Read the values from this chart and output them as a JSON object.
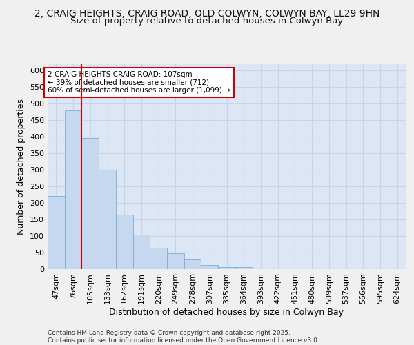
{
  "title_line1": "2, CRAIG HEIGHTS, CRAIG ROAD, OLD COLWYN, COLWYN BAY, LL29 9HN",
  "title_line2": "Size of property relative to detached houses in Colwyn Bay",
  "xlabel": "Distribution of detached houses by size in Colwyn Bay",
  "ylabel": "Number of detached properties",
  "categories": [
    "47sqm",
    "76sqm",
    "105sqm",
    "133sqm",
    "162sqm",
    "191sqm",
    "220sqm",
    "249sqm",
    "278sqm",
    "307sqm",
    "335sqm",
    "364sqm",
    "393sqm",
    "422sqm",
    "451sqm",
    "480sqm",
    "509sqm",
    "537sqm",
    "566sqm",
    "595sqm",
    "624sqm"
  ],
  "values": [
    220,
    480,
    395,
    300,
    165,
    105,
    65,
    47,
    30,
    12,
    7,
    7,
    0,
    0,
    0,
    0,
    0,
    0,
    0,
    0,
    0
  ],
  "bar_color": "#c5d8f0",
  "bar_edge_color": "#7bafd4",
  "grid_color": "#c8d4e8",
  "background_color": "#dce6f5",
  "annotation_text": "2 CRAIG HEIGHTS CRAIG ROAD: 107sqm\n← 39% of detached houses are smaller (712)\n60% of semi-detached houses are larger (1,099) →",
  "annotation_box_color": "#ffffff",
  "annotation_box_edge": "#cc0000",
  "vline_color": "#cc0000",
  "vline_index": 2,
  "ylim": [
    0,
    620
  ],
  "yticks": [
    0,
    50,
    100,
    150,
    200,
    250,
    300,
    350,
    400,
    450,
    500,
    550,
    600
  ],
  "footer_text": "Contains HM Land Registry data © Crown copyright and database right 2025.\nContains public sector information licensed under the Open Government Licence v3.0.",
  "title_fontsize": 10,
  "subtitle_fontsize": 9.5,
  "axis_label_fontsize": 9,
  "tick_fontsize": 8,
  "footer_fontsize": 6.5,
  "annotation_fontsize": 7.5
}
